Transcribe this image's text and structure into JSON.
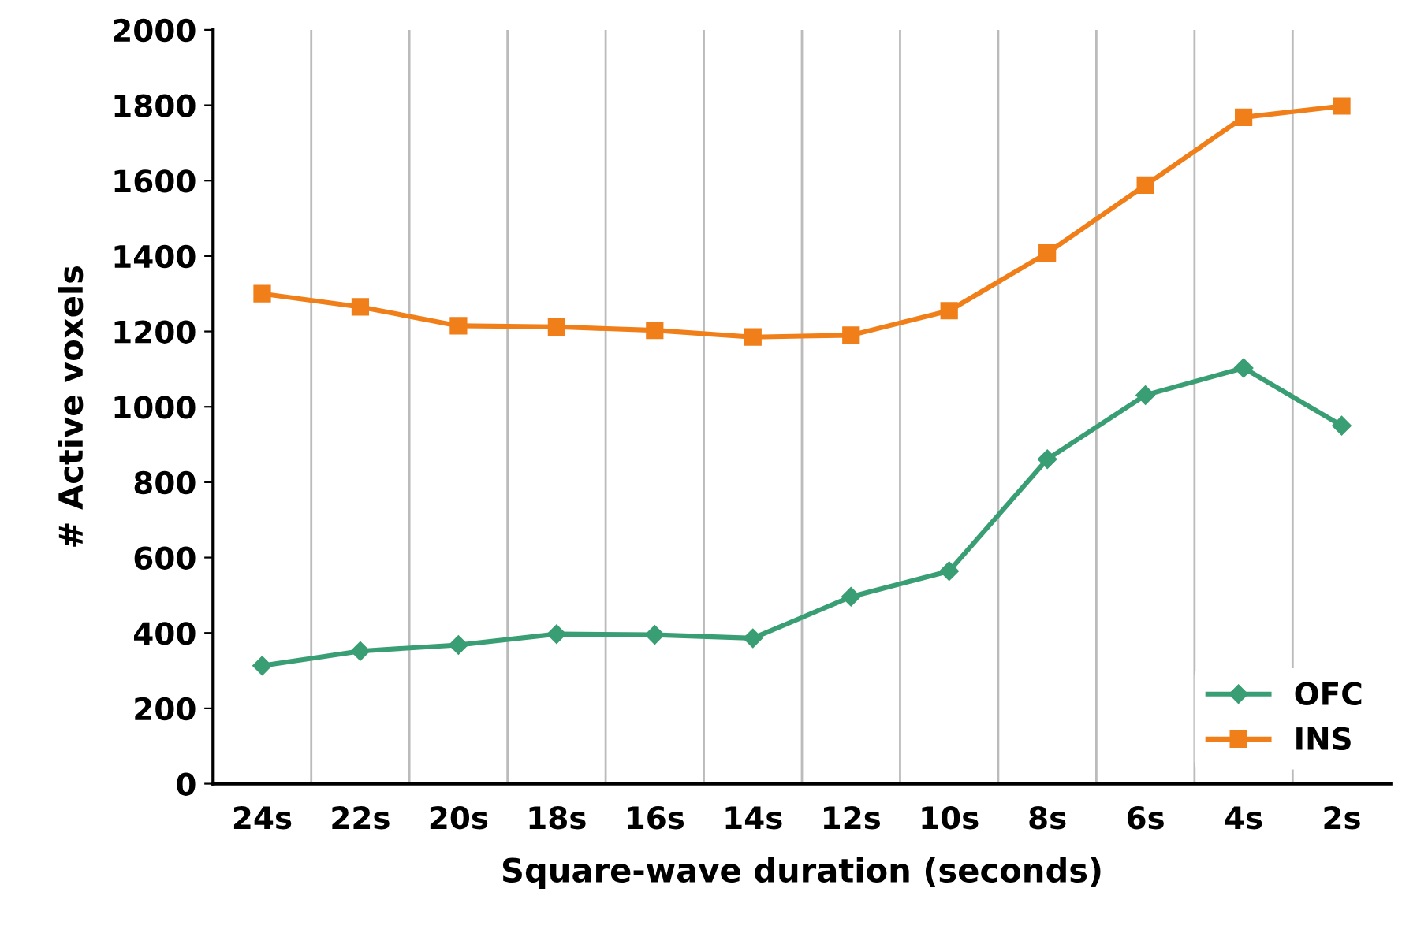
{
  "chart_data": {
    "type": "line",
    "xlabel": "Square-wave duration (seconds)",
    "ylabel": "# Active voxels",
    "categories": [
      "24s",
      "22s",
      "20s",
      "18s",
      "16s",
      "14s",
      "12s",
      "10s",
      "8s",
      "6s",
      "4s",
      "2s"
    ],
    "series": [
      {
        "name": "OFC",
        "color": "#3a9e74",
        "marker": "diamond",
        "values": [
          313,
          352,
          368,
          397,
          395,
          386,
          496,
          564,
          861,
          1031,
          1103,
          950
        ]
      },
      {
        "name": "INS",
        "color": "#f07f1a",
        "marker": "square",
        "values": [
          1300,
          1265,
          1215,
          1212,
          1203,
          1185,
          1190,
          1255,
          1408,
          1588,
          1768,
          1798
        ]
      }
    ],
    "ylim": [
      0,
      2000
    ],
    "yticks": [
      0,
      200,
      400,
      600,
      800,
      1000,
      1200,
      1400,
      1600,
      1800,
      2000
    ],
    "grid": "x",
    "legend": "bottom right",
    "line_style": "solid"
  }
}
